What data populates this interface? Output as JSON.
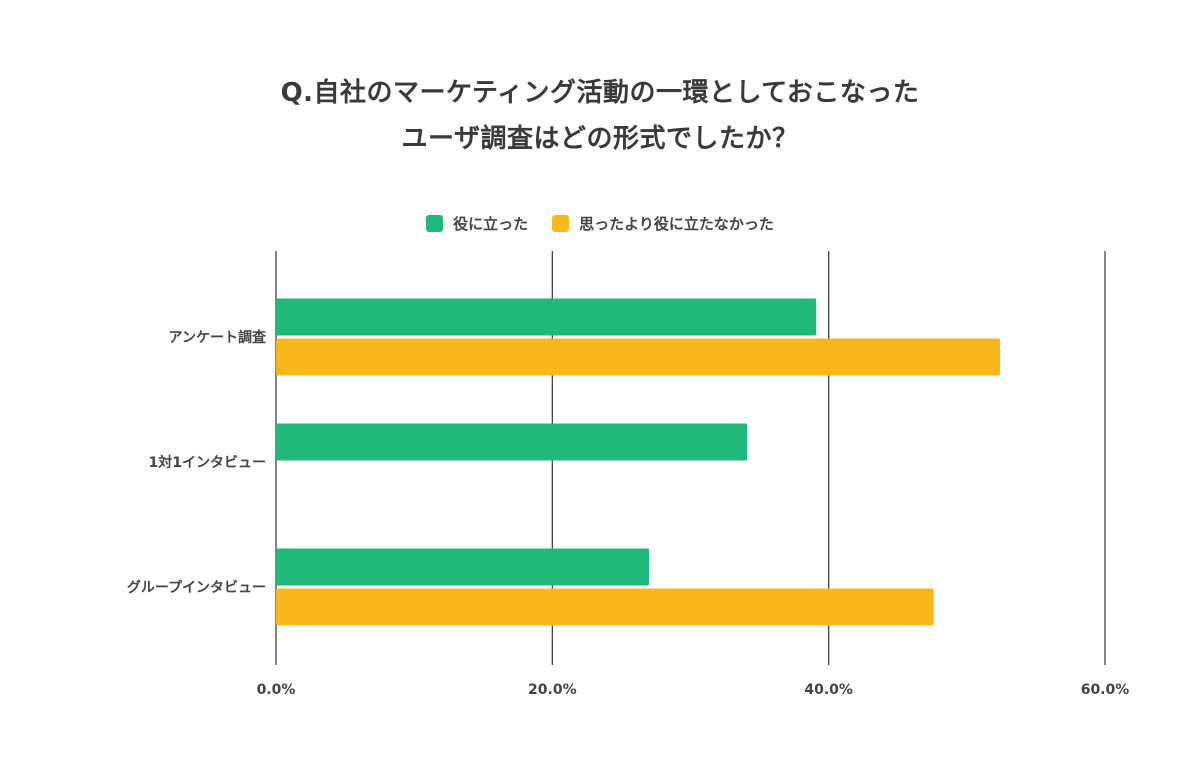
{
  "title_lines": [
    "Q.自社のマーケティング活動の一環としておこなった",
    "ユーザ調査はどの形式でしたか？"
  ],
  "colors": {
    "series_1": "#21b87c",
    "series_2": "#f8b81b",
    "grid": "#444444"
  },
  "chart_data": {
    "type": "bar",
    "orientation": "horizontal",
    "title": "Q.自社のマーケティング活動の一環としておこなった ユーザ調査はどの形式でしたか？",
    "categories": [
      "アンケート調査",
      "1対1インタビュー",
      "グループインタビュー"
    ],
    "series": [
      {
        "name": "役に立った",
        "values": [
          39.1,
          34.1,
          27.0
        ]
      },
      {
        "name": "思ったより役に立たなかった",
        "values": [
          52.4,
          null,
          47.6
        ]
      }
    ],
    "xlim": [
      0,
      60
    ],
    "x_ticks": [
      0,
      20,
      40,
      60
    ],
    "x_tick_labels": [
      "0.0%",
      "20.0%",
      "40.0%",
      "60.0%"
    ],
    "grid": true,
    "legend_position": "top-center"
  }
}
